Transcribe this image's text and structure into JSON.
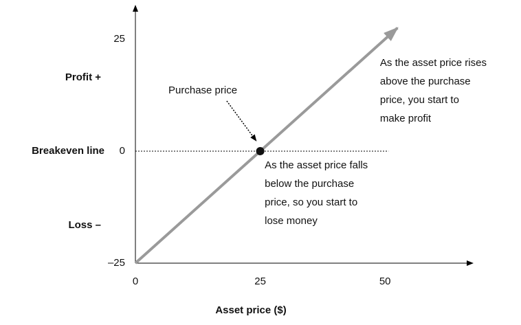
{
  "chart_data": {
    "type": "line",
    "xlabel": "Asset price ($)",
    "xlim": [
      0,
      67.6
    ],
    "ylim": [
      -25,
      32.5
    ],
    "xticks": [
      0,
      25,
      50
    ],
    "yticks": [
      25,
      0,
      {
        "value": -25,
        "label": "–25"
      }
    ],
    "series": [
      {
        "color": "#9a9a9a",
        "x": [
          0,
          52.5
        ],
        "values": [
          -25,
          27.5
        ]
      }
    ],
    "point": {
      "x": 25,
      "y": 0,
      "color": "#111111"
    },
    "hline": {
      "y": 0,
      "xmax": 50.7,
      "label": "Breakeven line"
    },
    "side_labels": [
      {
        "text": "Profit +",
        "y": 16.4
      },
      {
        "text": "Loss –",
        "y": -16.6
      }
    ],
    "annotations": [
      {
        "lines": [
          "Purchase price"
        ],
        "x": 13.5,
        "y": 13.5,
        "arrow_from": [
          18.3,
          11.2
        ],
        "arrow_to": [
          24.2,
          2.3
        ]
      },
      {
        "lines": [
          "As the asset price rises",
          "above the purchase",
          "price, you start to",
          "make profit"
        ],
        "x": 49,
        "y": 19.6
      },
      {
        "lines": [
          "As the asset price falls",
          "below the purchase",
          "price, so you start to",
          "lose money"
        ],
        "x": 25.9,
        "y": -3.2
      }
    ]
  }
}
